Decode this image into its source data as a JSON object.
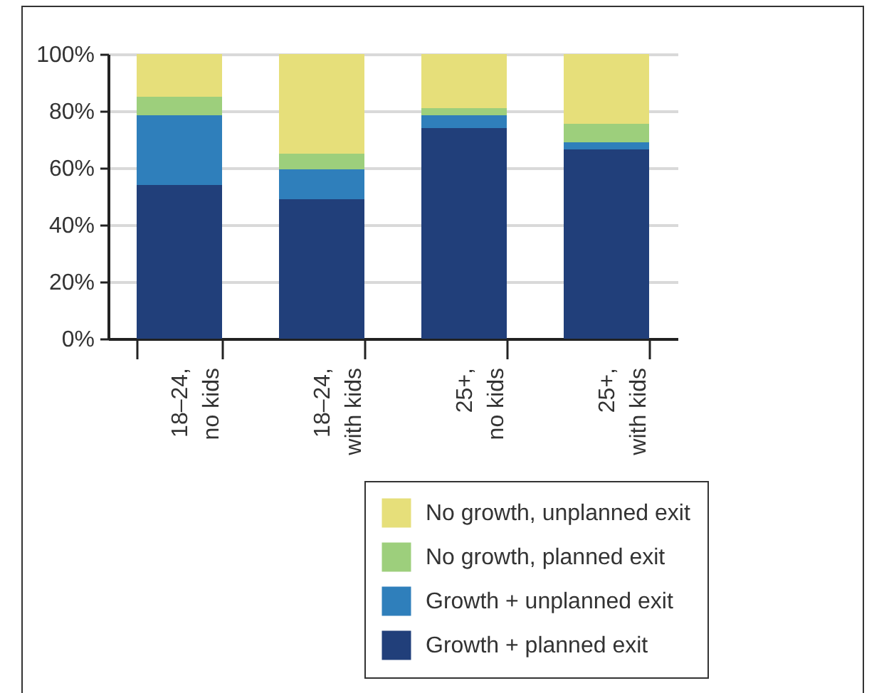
{
  "chart_data": {
    "type": "bar",
    "stacked": true,
    "categories": [
      "18–24, no kids",
      "18–24, with kids",
      "25+, no kids",
      "25+, with kids"
    ],
    "series": [
      {
        "name": "Growth + planned exit",
        "color": "#213f7a",
        "values": [
          54,
          49,
          74,
          66.5
        ]
      },
      {
        "name": "Growth + unplanned exit",
        "color": "#2f7fbb",
        "values": [
          24.5,
          10.5,
          4.5,
          2.5
        ]
      },
      {
        "name": "No growth, planned exit",
        "color": "#9dcf7c",
        "values": [
          6.5,
          5.5,
          2.5,
          6.5
        ]
      },
      {
        "name": "No growth, unplanned exit",
        "color": "#e6df7a",
        "values": [
          15,
          35,
          19,
          24.5
        ]
      }
    ],
    "ylim": [
      0,
      100
    ],
    "yticks": [
      {
        "value": 0,
        "label": "0%"
      },
      {
        "value": 20,
        "label": "20%"
      },
      {
        "value": 40,
        "label": "40%"
      },
      {
        "value": 60,
        "label": "60%"
      },
      {
        "value": 80,
        "label": "80%"
      },
      {
        "value": 100,
        "label": "100%"
      }
    ],
    "grid": "y",
    "legend": "bottom"
  }
}
